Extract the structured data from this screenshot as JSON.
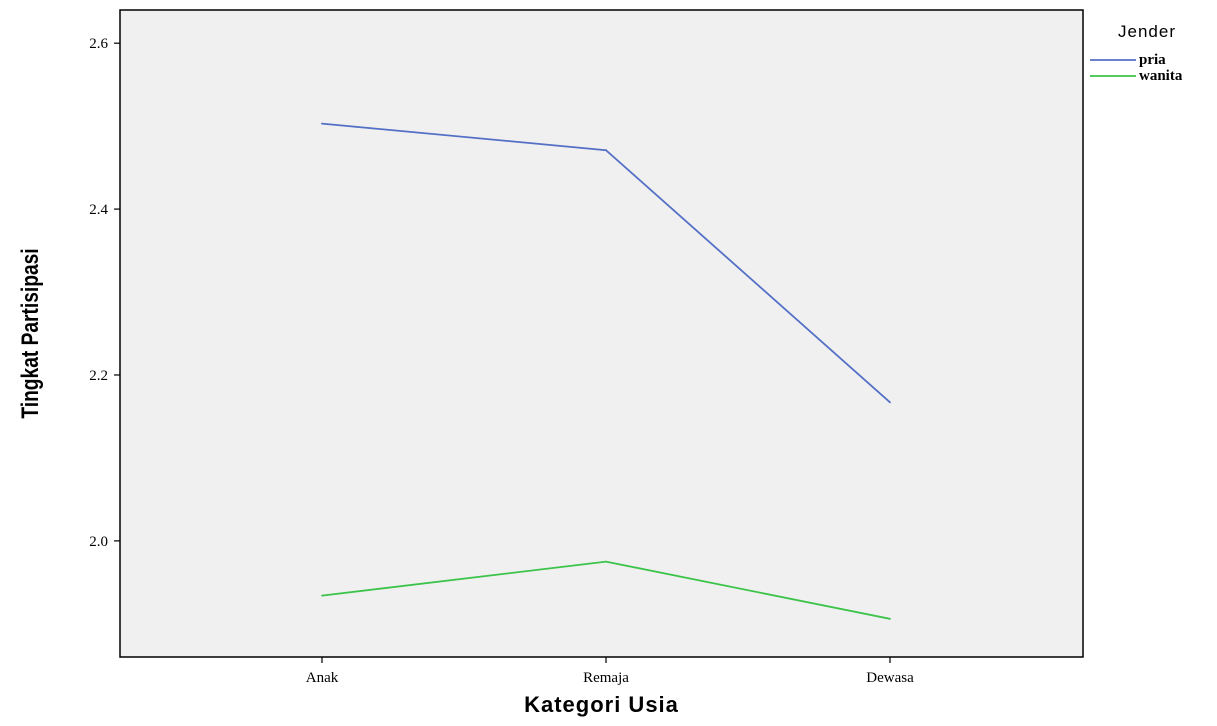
{
  "chart_data": {
    "type": "line",
    "xlabel": "Kategori Usia",
    "ylabel": "Tingkat Partisipasi",
    "categories": [
      "Anak",
      "Remaja",
      "Dewasa"
    ],
    "yticks": [
      "2.0",
      "2.2",
      "2.4",
      "2.6"
    ],
    "ylim": [
      1.86,
      2.64
    ],
    "grid": false,
    "legend": {
      "title": "Jender",
      "placement": "right"
    },
    "series": [
      {
        "name": "pria",
        "color": "#5470c6",
        "values": [
          2.503,
          2.471,
          2.167
        ]
      },
      {
        "name": "wanita",
        "color": "#3cc34a",
        "values": [
          1.934,
          1.975,
          1.906
        ]
      }
    ],
    "colors": {
      "plot_background": "#f0f0f0",
      "axis": "#000000"
    }
  }
}
